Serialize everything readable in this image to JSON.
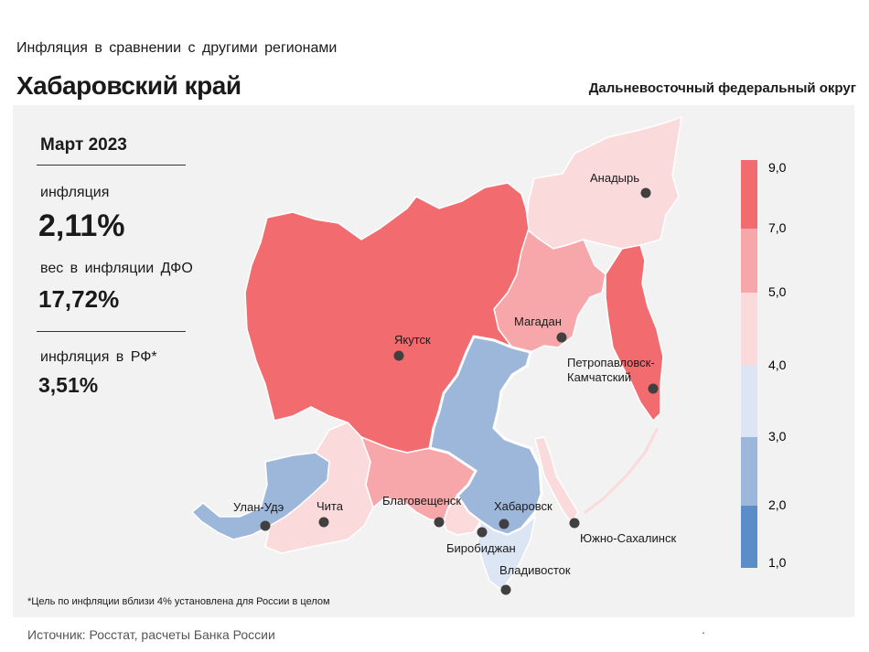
{
  "header": {
    "subtitle": "Инфляция в сравнении с другими регионами",
    "title": "Хабаровский край",
    "district": "Дальневосточный федеральный округ"
  },
  "stats": {
    "period": "Март 2023",
    "inflation_label": "инфляция",
    "inflation_value": "2,11%",
    "weight_label": "вес в инфляции ДФО",
    "weight_value": "17,72%",
    "rf_label": "инфляция в РФ*",
    "rf_value": "3,51%"
  },
  "legend": {
    "ticks": [
      "9,0",
      "7,0",
      "5,0",
      "4,0",
      "3,0",
      "2,0",
      "1,0"
    ],
    "colors": [
      "#f26b6e",
      "#f7a7a9",
      "#fbdadc",
      "#dce5f4",
      "#9db7da",
      "#5b8dc9"
    ]
  },
  "cities": [
    {
      "name": "Анадырь"
    },
    {
      "name": "Магадан"
    },
    {
      "name": "Якутск"
    },
    {
      "name": "Петропавловск-"
    },
    {
      "name": "Камчатский"
    },
    {
      "name": "Улан-Удэ"
    },
    {
      "name": "Чита"
    },
    {
      "name": "Благовещенск"
    },
    {
      "name": "Хабаровск"
    },
    {
      "name": "Биробиджан"
    },
    {
      "name": "Южно-Сахалинск"
    },
    {
      "name": "Владивосток"
    }
  ],
  "colors": {
    "high": "#f26b6e",
    "mid_high": "#f7a7a9",
    "mid": "#fbdadc",
    "low": "#9db7da",
    "background": "#f2f2f2"
  },
  "footnote": "*Цель по инфляции вблизи 4% установлена для России в целом",
  "source": "Источник: Росстат, расчеты Банка России",
  "source_tail": "."
}
